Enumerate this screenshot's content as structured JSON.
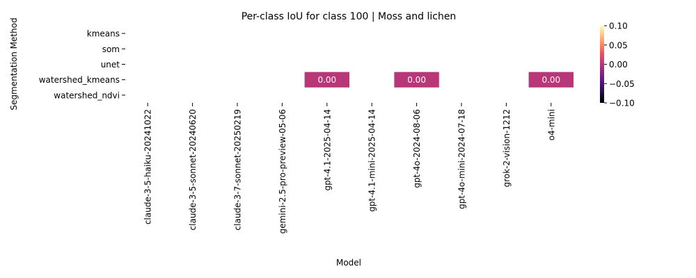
{
  "chart_data": {
    "type": "heatmap",
    "title": "Per-class IoU for class 100 | Moss and lichen",
    "xlabel": "Model",
    "ylabel": "Segmentation Method",
    "x_categories": [
      "claude-3-5-haiku-20241022",
      "claude-3-5-sonnet-20240620",
      "claude-3-7-sonnet-20250219",
      "gemini-2.5-pro-preview-05-06",
      "gpt-4.1-2025-04-14",
      "gpt-4.1-mini-2025-04-14",
      "gpt-4o-2024-08-06",
      "gpt-4o-mini-2024-07-18",
      "grok-2-vision-1212",
      "o4-mini"
    ],
    "y_categories": [
      "kmeans",
      "som",
      "unet",
      "watershed_kmeans",
      "watershed_ndvi"
    ],
    "values": [
      [
        null,
        null,
        null,
        null,
        null,
        null,
        null,
        null,
        null,
        null
      ],
      [
        null,
        null,
        null,
        null,
        null,
        null,
        null,
        null,
        null,
        null
      ],
      [
        null,
        null,
        null,
        null,
        null,
        null,
        null,
        null,
        null,
        null
      ],
      [
        null,
        null,
        null,
        null,
        0.0,
        null,
        0.0,
        null,
        null,
        0.0
      ],
      [
        null,
        null,
        null,
        null,
        null,
        null,
        null,
        null,
        null,
        null
      ]
    ],
    "cell_labels": [
      [
        null,
        null,
        null,
        null,
        null,
        null,
        null,
        null,
        null,
        null
      ],
      [
        null,
        null,
        null,
        null,
        null,
        null,
        null,
        null,
        null,
        null
      ],
      [
        null,
        null,
        null,
        null,
        null,
        null,
        null,
        null,
        null,
        null
      ],
      [
        null,
        null,
        null,
        null,
        "0.00",
        null,
        "0.00",
        null,
        null,
        "0.00"
      ],
      [
        null,
        null,
        null,
        null,
        null,
        null,
        null,
        null,
        null,
        null
      ]
    ],
    "colorbar": {
      "colormap": "magma",
      "vmin": -0.1,
      "vmax": 0.1,
      "ticks": [
        0.1,
        0.05,
        0.0,
        -0.05,
        -0.1
      ],
      "tick_labels": [
        "0.10",
        "0.05",
        "0.00",
        "−0.05",
        "−0.10"
      ]
    },
    "cell_color": "#b73779",
    "label_color": "#ffffff",
    "grid": false,
    "legend": "colorbar-right"
  }
}
